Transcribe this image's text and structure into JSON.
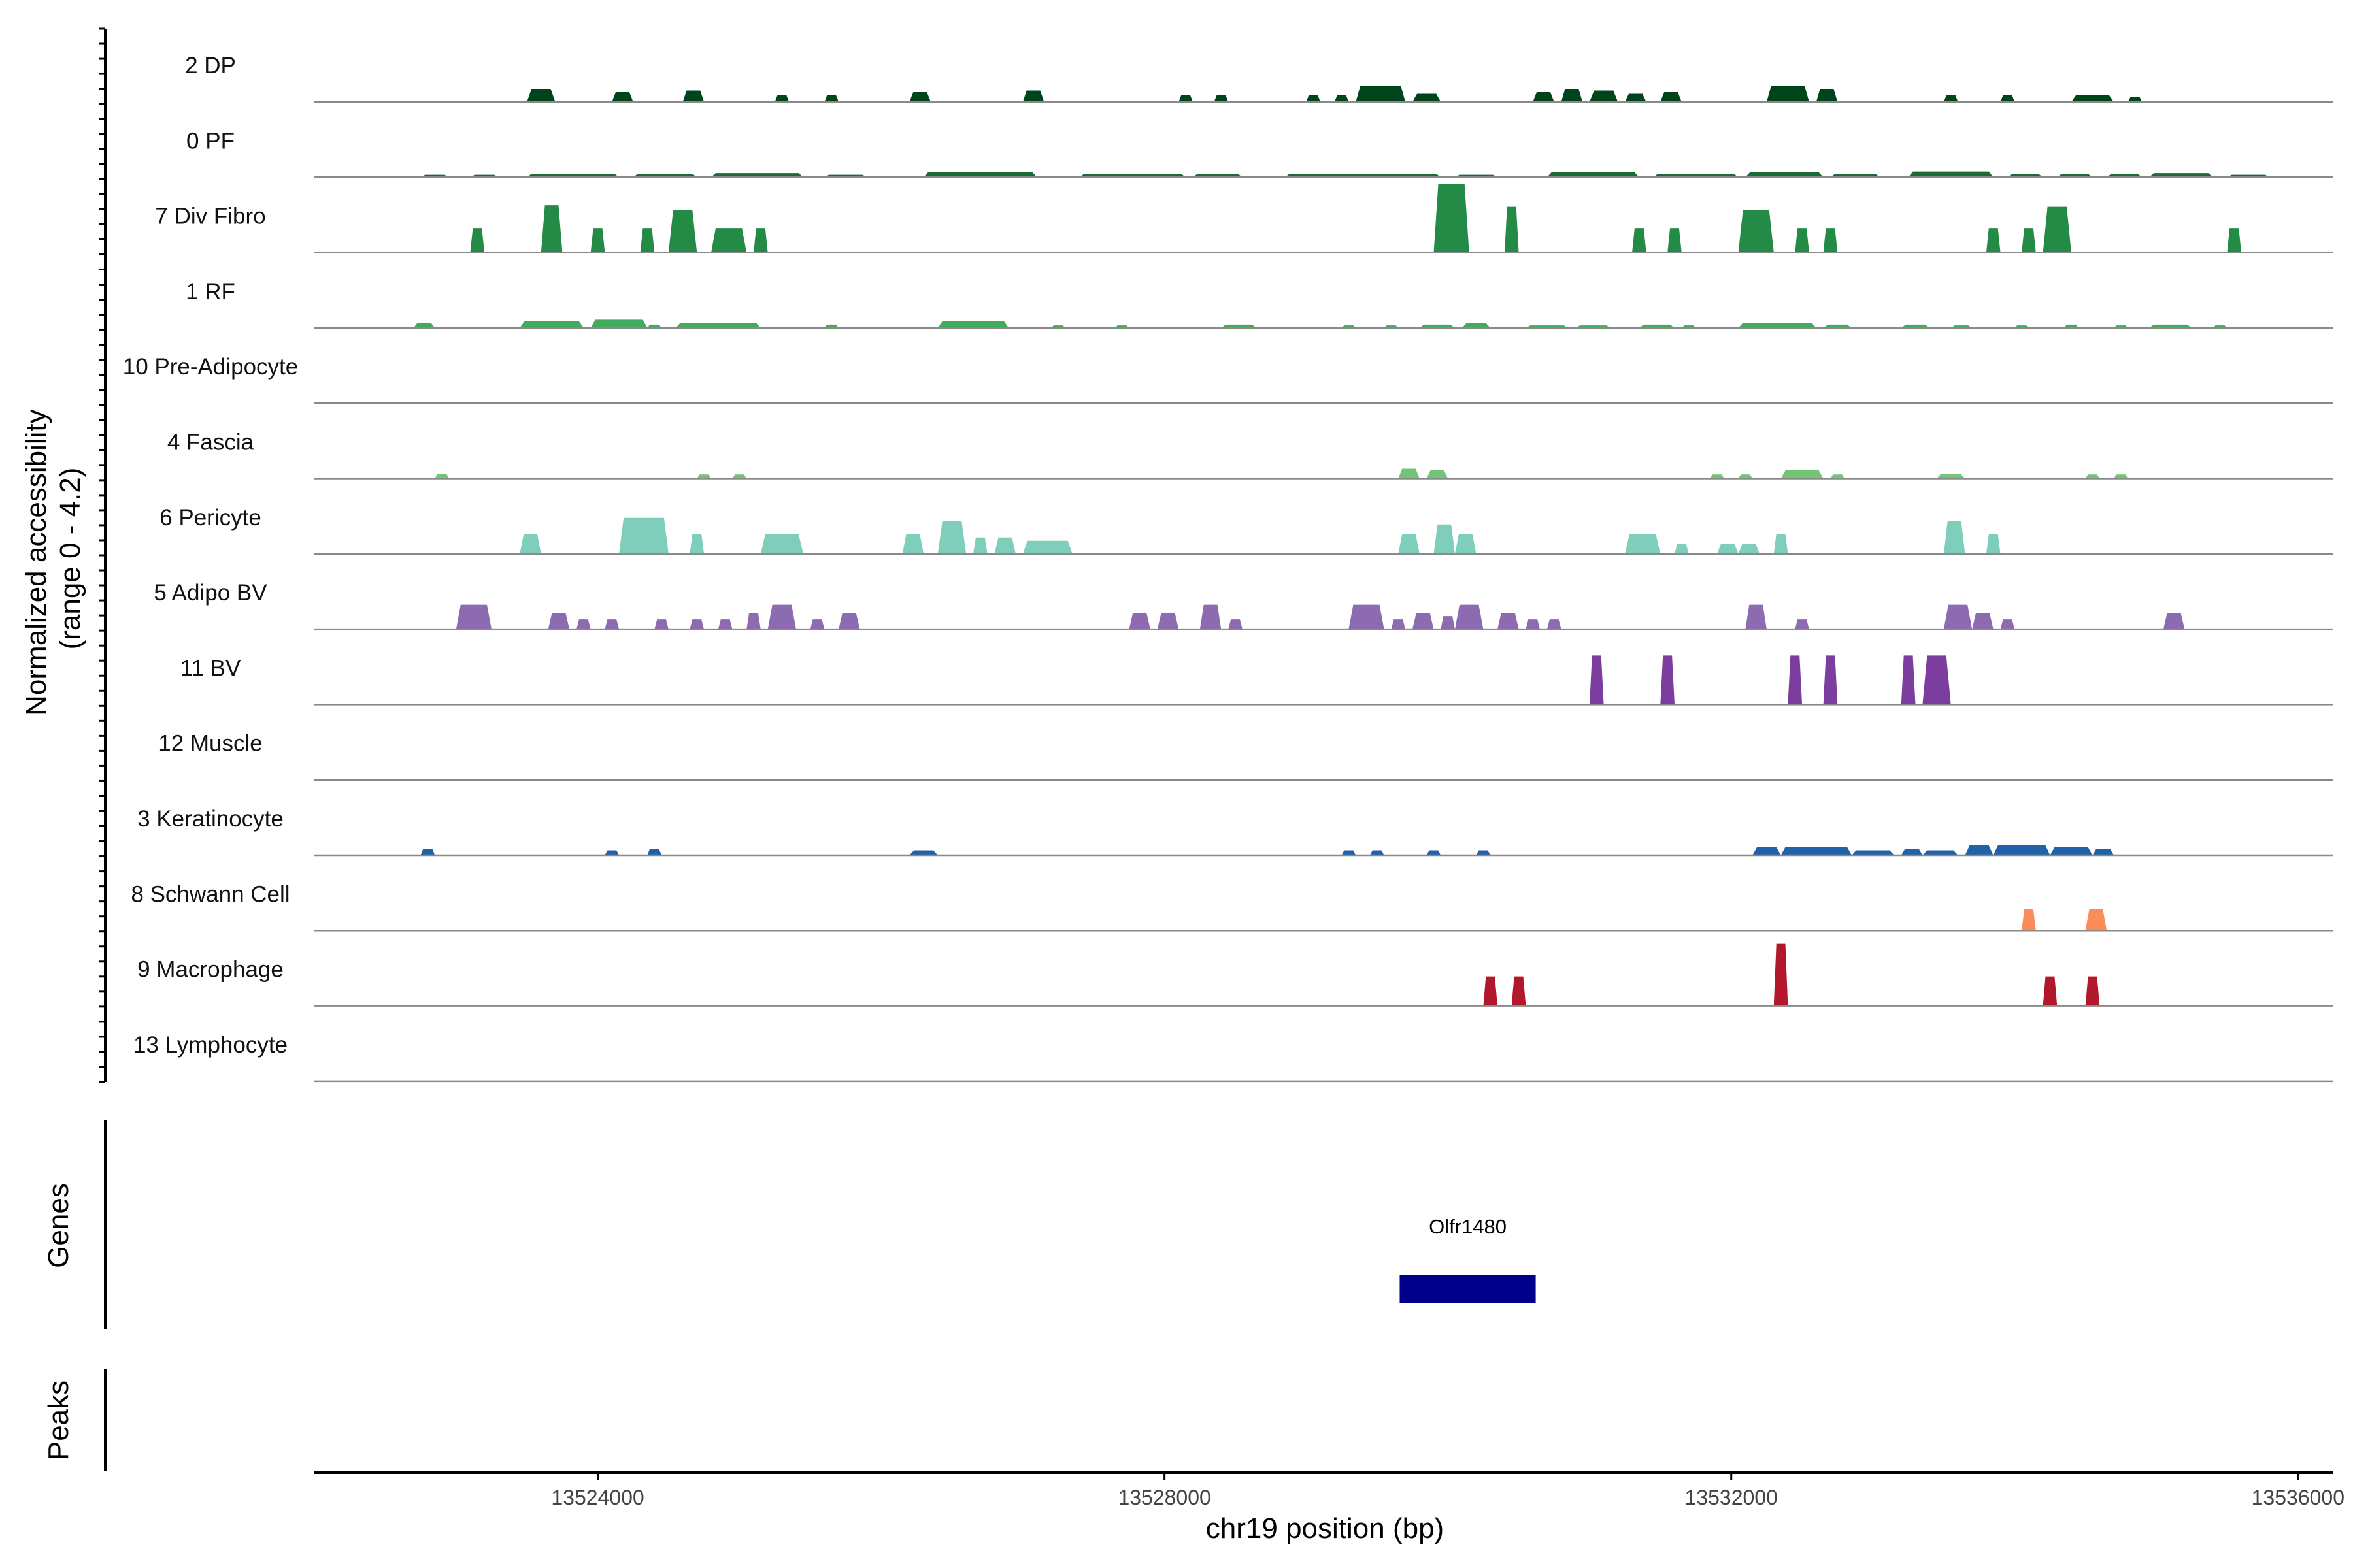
{
  "chart_data": {
    "type": "area",
    "title": "",
    "xlabel": "chr19 position (bp)",
    "ylabel": "Normalized accessibility\n(range 0 - 4.2)",
    "ylim": [
      0,
      4.2
    ],
    "xlim": [
      13522000,
      13536250
    ],
    "xticks": [
      13524000,
      13528000,
      13532000,
      13536000
    ],
    "xtick_labels": [
      "13524000",
      "13528000",
      "13532000",
      "13536000"
    ],
    "panel_labels": {
      "genes": "Genes",
      "peaks": "Peaks"
    },
    "gene": {
      "name": "Olfr1480",
      "start": 13529660,
      "end": 13530620,
      "color": "#00008b"
    },
    "tracks": [
      {
        "name": "2 DP",
        "color": "#00441b",
        "peaks": [
          [
            13523500,
            13523700,
            0.8
          ],
          [
            13524100,
            13524250,
            0.6
          ],
          [
            13524600,
            13524750,
            0.7
          ],
          [
            13525250,
            13525350,
            0.4
          ],
          [
            13525600,
            13525700,
            0.4
          ],
          [
            13526200,
            13526350,
            0.6
          ],
          [
            13527000,
            13527150,
            0.7
          ],
          [
            13528100,
            13528200,
            0.4
          ],
          [
            13528350,
            13528450,
            0.4
          ],
          [
            13529000,
            13529100,
            0.4
          ],
          [
            13529200,
            13529300,
            0.4
          ],
          [
            13529350,
            13529700,
            1.0
          ],
          [
            13529750,
            13529950,
            0.5
          ],
          [
            13530600,
            13530750,
            0.6
          ],
          [
            13530800,
            13530950,
            0.8
          ],
          [
            13531000,
            13531200,
            0.7
          ],
          [
            13531250,
            13531400,
            0.5
          ],
          [
            13531500,
            13531650,
            0.6
          ],
          [
            13532250,
            13532550,
            1.0
          ],
          [
            13532600,
            13532750,
            0.8
          ],
          [
            13533500,
            13533600,
            0.4
          ],
          [
            13533900,
            13534000,
            0.4
          ],
          [
            13534400,
            13534700,
            0.4
          ],
          [
            13534800,
            13534900,
            0.3
          ]
        ]
      },
      {
        "name": "0 PF",
        "color": "#1a6b35",
        "peaks": [
          [
            13522750,
            13522950,
            0.15
          ],
          [
            13523100,
            13523300,
            0.15
          ],
          [
            13523500,
            13524150,
            0.2
          ],
          [
            13524250,
            13524700,
            0.2
          ],
          [
            13524800,
            13525450,
            0.25
          ],
          [
            13525600,
            13525900,
            0.15
          ],
          [
            13526300,
            13527100,
            0.3
          ],
          [
            13527400,
            13528150,
            0.2
          ],
          [
            13528200,
            13528550,
            0.2
          ],
          [
            13528850,
            13529950,
            0.2
          ],
          [
            13530050,
            13530350,
            0.15
          ],
          [
            13530700,
            13531350,
            0.3
          ],
          [
            13531450,
            13532050,
            0.2
          ],
          [
            13532100,
            13532650,
            0.3
          ],
          [
            13532700,
            13533050,
            0.2
          ],
          [
            13533250,
            13533850,
            0.35
          ],
          [
            13533950,
            13534200,
            0.2
          ],
          [
            13534300,
            13534550,
            0.2
          ],
          [
            13534650,
            13534900,
            0.2
          ],
          [
            13534950,
            13535400,
            0.25
          ],
          [
            13535500,
            13535800,
            0.15
          ]
        ]
      },
      {
        "name": "7 Div Fibro",
        "color": "#238b45",
        "peaks": [
          [
            13523100,
            13523200,
            1.5
          ],
          [
            13523600,
            13523750,
            2.9
          ],
          [
            13523950,
            13524050,
            1.5
          ],
          [
            13524300,
            13524400,
            1.5
          ],
          [
            13524500,
            13524700,
            2.6
          ],
          [
            13524800,
            13525050,
            1.5
          ],
          [
            13525100,
            13525200,
            1.5
          ],
          [
            13529900,
            13530150,
            4.2
          ],
          [
            13530400,
            13530500,
            2.8
          ],
          [
            13531300,
            13531400,
            1.5
          ],
          [
            13531550,
            13531650,
            1.5
          ],
          [
            13532050,
            13532300,
            2.6
          ],
          [
            13532450,
            13532550,
            1.5
          ],
          [
            13532650,
            13532750,
            1.5
          ],
          [
            13533800,
            13533900,
            1.5
          ],
          [
            13534050,
            13534150,
            1.5
          ],
          [
            13534200,
            13534400,
            2.8
          ],
          [
            13535500,
            13535600,
            1.5
          ]
        ]
      },
      {
        "name": "1 RF",
        "color": "#41ab5d",
        "peaks": [
          [
            13522700,
            13522850,
            0.3
          ],
          [
            13523450,
            13523900,
            0.4
          ],
          [
            13523950,
            13524350,
            0.5
          ],
          [
            13524350,
            13524450,
            0.2
          ],
          [
            13524550,
            13525150,
            0.3
          ],
          [
            13525600,
            13525700,
            0.2
          ],
          [
            13526400,
            13526900,
            0.4
          ],
          [
            13527200,
            13527300,
            0.15
          ],
          [
            13527650,
            13527750,
            0.15
          ],
          [
            13528400,
            13528650,
            0.2
          ],
          [
            13529250,
            13529350,
            0.15
          ],
          [
            13529550,
            13529650,
            0.15
          ],
          [
            13529800,
            13530050,
            0.2
          ],
          [
            13530100,
            13530300,
            0.3
          ],
          [
            13530550,
            13530850,
            0.15
          ],
          [
            13530900,
            13531150,
            0.15
          ],
          [
            13531350,
            13531600,
            0.2
          ],
          [
            13531650,
            13531750,
            0.15
          ],
          [
            13532050,
            13532600,
            0.3
          ],
          [
            13532650,
            13532850,
            0.2
          ],
          [
            13533200,
            13533400,
            0.2
          ],
          [
            13533550,
            13533700,
            0.15
          ],
          [
            13534000,
            13534100,
            0.15
          ],
          [
            13534350,
            13534450,
            0.2
          ],
          [
            13534700,
            13534800,
            0.15
          ],
          [
            13534950,
            13535250,
            0.2
          ],
          [
            13535400,
            13535500,
            0.15
          ]
        ]
      },
      {
        "name": "10 Pre-Adipocyte",
        "color": "#5fb85f",
        "peaks": []
      },
      {
        "name": "4 Fascia",
        "color": "#74c476",
        "peaks": [
          [
            13522850,
            13522950,
            0.3
          ],
          [
            13524700,
            13524800,
            0.25
          ],
          [
            13524950,
            13525050,
            0.25
          ],
          [
            13529650,
            13529800,
            0.6
          ],
          [
            13529850,
            13530000,
            0.5
          ],
          [
            13531850,
            13531950,
            0.25
          ],
          [
            13532050,
            13532150,
            0.25
          ],
          [
            13532350,
            13532650,
            0.5
          ],
          [
            13532700,
            13532800,
            0.25
          ],
          [
            13533450,
            13533650,
            0.3
          ],
          [
            13534500,
            13534600,
            0.25
          ],
          [
            13534700,
            13534800,
            0.25
          ]
        ]
      },
      {
        "name": "6 Pericyte",
        "color": "#7fcdbb",
        "peaks": [
          [
            13523450,
            13523600,
            1.2
          ],
          [
            13524150,
            13524500,
            2.2
          ],
          [
            13524650,
            13524750,
            1.2
          ],
          [
            13525150,
            13525450,
            1.2
          ],
          [
            13526150,
            13526300,
            1.2
          ],
          [
            13526400,
            13526600,
            2.0
          ],
          [
            13526650,
            13526750,
            1.0
          ],
          [
            13526800,
            13526950,
            1.0
          ],
          [
            13527000,
            13527350,
            0.8
          ],
          [
            13529650,
            13529800,
            1.2
          ],
          [
            13529900,
            13530050,
            1.8
          ],
          [
            13530050,
            13530200,
            1.2
          ],
          [
            13531250,
            13531500,
            1.2
          ],
          [
            13531600,
            13531700,
            0.6
          ],
          [
            13531900,
            13532050,
            0.6
          ],
          [
            13532050,
            13532200,
            0.6
          ],
          [
            13532300,
            13532400,
            1.2
          ],
          [
            13533500,
            13533650,
            2.0
          ],
          [
            13533800,
            13533900,
            1.2
          ]
        ]
      },
      {
        "name": "5 Adipo BV",
        "color": "#8c6bb1",
        "peaks": [
          [
            13523000,
            13523250,
            1.5
          ],
          [
            13523650,
            13523800,
            1.0
          ],
          [
            13523850,
            13523950,
            0.6
          ],
          [
            13524050,
            13524150,
            0.6
          ],
          [
            13524400,
            13524500,
            0.6
          ],
          [
            13524650,
            13524750,
            0.6
          ],
          [
            13524850,
            13524950,
            0.6
          ],
          [
            13525050,
            13525150,
            1.0
          ],
          [
            13525200,
            13525400,
            1.5
          ],
          [
            13525500,
            13525600,
            0.6
          ],
          [
            13525700,
            13525850,
            1.0
          ],
          [
            13527750,
            13527900,
            1.0
          ],
          [
            13527950,
            13528100,
            1.0
          ],
          [
            13528250,
            13528400,
            1.5
          ],
          [
            13528450,
            13528550,
            0.6
          ],
          [
            13529300,
            13529550,
            1.5
          ],
          [
            13529600,
            13529700,
            0.6
          ],
          [
            13529750,
            13529900,
            1.0
          ],
          [
            13529950,
            13530050,
            0.8
          ],
          [
            13530050,
            13530250,
            1.5
          ],
          [
            13530350,
            13530500,
            1.0
          ],
          [
            13530550,
            13530650,
            0.6
          ],
          [
            13530700,
            13530800,
            0.6
          ],
          [
            13532100,
            13532250,
            1.5
          ],
          [
            13532450,
            13532550,
            0.6
          ],
          [
            13533500,
            13533700,
            1.5
          ],
          [
            13533700,
            13533850,
            1.0
          ],
          [
            13533900,
            13534000,
            0.6
          ],
          [
            13535050,
            13535200,
            1.0
          ]
        ]
      },
      {
        "name": "11 BV",
        "color": "#7b3d9e",
        "peaks": [
          [
            13531000,
            13531100,
            3.0
          ],
          [
            13531500,
            13531600,
            3.0
          ],
          [
            13532400,
            13532500,
            3.0
          ],
          [
            13532650,
            13532750,
            3.0
          ],
          [
            13533200,
            13533300,
            3.0
          ],
          [
            13533350,
            13533550,
            3.0
          ]
        ]
      },
      {
        "name": "12 Muscle",
        "color": "#6a3d9a",
        "peaks": []
      },
      {
        "name": "3 Keratinocyte",
        "color": "#2161a8",
        "peaks": [
          [
            13522750,
            13522850,
            0.4
          ],
          [
            13524050,
            13524150,
            0.3
          ],
          [
            13524350,
            13524450,
            0.4
          ],
          [
            13526200,
            13526400,
            0.3
          ],
          [
            13529250,
            13529350,
            0.3
          ],
          [
            13529450,
            13529550,
            0.3
          ],
          [
            13529850,
            13529950,
            0.3
          ],
          [
            13530200,
            13530300,
            0.3
          ],
          [
            13532150,
            13532350,
            0.5
          ],
          [
            13532350,
            13532850,
            0.5
          ],
          [
            13532850,
            13533150,
            0.3
          ],
          [
            13533200,
            13533350,
            0.4
          ],
          [
            13533350,
            13533600,
            0.3
          ],
          [
            13533650,
            13533850,
            0.6
          ],
          [
            13533850,
            13534250,
            0.6
          ],
          [
            13534250,
            13534550,
            0.5
          ],
          [
            13534550,
            13534700,
            0.4
          ]
        ]
      },
      {
        "name": "8 Schwann Cell",
        "color": "#fc8d59",
        "peaks": [
          [
            13534050,
            13534150,
            1.3
          ],
          [
            13534500,
            13534650,
            1.3
          ]
        ]
      },
      {
        "name": "9 Macrophage",
        "color": "#b2182b",
        "peaks": [
          [
            13530250,
            13530350,
            1.8
          ],
          [
            13530450,
            13530550,
            1.8
          ],
          [
            13532300,
            13532400,
            3.8
          ],
          [
            13534200,
            13534300,
            1.8
          ],
          [
            13534500,
            13534600,
            1.8
          ]
        ]
      },
      {
        "name": "13 Lymphocyte",
        "color": "#e31a1c",
        "peaks": []
      }
    ]
  }
}
